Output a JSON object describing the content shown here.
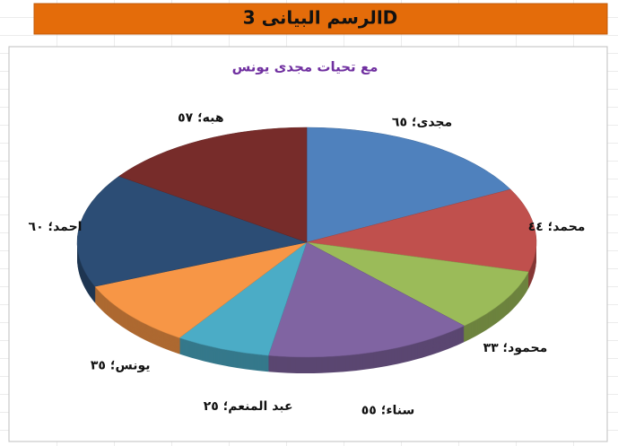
{
  "header": {
    "title": "الرسم البيانى 3D"
  },
  "chart_data": {
    "type": "pie3d",
    "title": "مع تحيات مجدى يونس",
    "categories": [
      "مجدى",
      "محمد",
      "محمود",
      "سناء",
      "عبد المنعم",
      "يونس",
      "احمد",
      "هبه"
    ],
    "values": [
      65,
      44,
      33,
      55,
      25,
      35,
      60,
      57
    ],
    "value_labels": [
      "مجدى؛ ٦٥",
      "محمد؛ ٤٤",
      "محمود؛ ٣٣",
      "سناء؛ ٥٥",
      "عبد المنعم؛ ٢٥",
      "يونس؛ ٣٥",
      "احمد؛ ٦٠",
      "هبه؛ ٥٧"
    ],
    "colors": [
      "#4f81bd",
      "#c0504d",
      "#9bbb59",
      "#8064a2",
      "#4bacc6",
      "#f79646",
      "#2c4d75",
      "#772c2a"
    ]
  }
}
